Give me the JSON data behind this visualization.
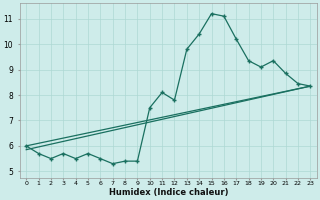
{
  "xlabel": "Humidex (Indice chaleur)",
  "ylabel": "",
  "background_color": "#ceecea",
  "line_color": "#1a7060",
  "grid_color": "#aed8d4",
  "xlim": [
    -0.5,
    23.5
  ],
  "ylim": [
    4.75,
    11.6
  ],
  "yticks": [
    5,
    6,
    7,
    8,
    9,
    10,
    11
  ],
  "xticks": [
    0,
    1,
    2,
    3,
    4,
    5,
    6,
    7,
    8,
    9,
    10,
    11,
    12,
    13,
    14,
    15,
    16,
    17,
    18,
    19,
    20,
    21,
    22,
    23
  ],
  "xtick_labels": [
    "0",
    "1",
    "2",
    "3",
    "4",
    "5",
    "6",
    "7",
    "8",
    "9",
    "10",
    "11",
    "12",
    "13",
    "14",
    "15",
    "16",
    "17",
    "18",
    "19",
    "20",
    "21",
    "22",
    "23"
  ],
  "series1_x": [
    0,
    1,
    2,
    3,
    4,
    5,
    6,
    7,
    8,
    9,
    10,
    11,
    12,
    13,
    14,
    15,
    16,
    17,
    18,
    19,
    20,
    21,
    22,
    23
  ],
  "series1_y": [
    6.0,
    5.7,
    5.5,
    5.7,
    5.5,
    5.7,
    5.5,
    5.3,
    5.4,
    5.4,
    7.5,
    8.1,
    7.8,
    9.8,
    10.4,
    11.2,
    11.1,
    10.2,
    9.35,
    9.1,
    9.35,
    8.85,
    8.45,
    8.35
  ],
  "series2_x": [
    0,
    23
  ],
  "series2_y": [
    6.0,
    8.35
  ],
  "series3_x": [
    0,
    23
  ],
  "series3_y": [
    5.85,
    8.35
  ],
  "marker": "+",
  "markersize": 3.5,
  "linewidth": 0.9
}
